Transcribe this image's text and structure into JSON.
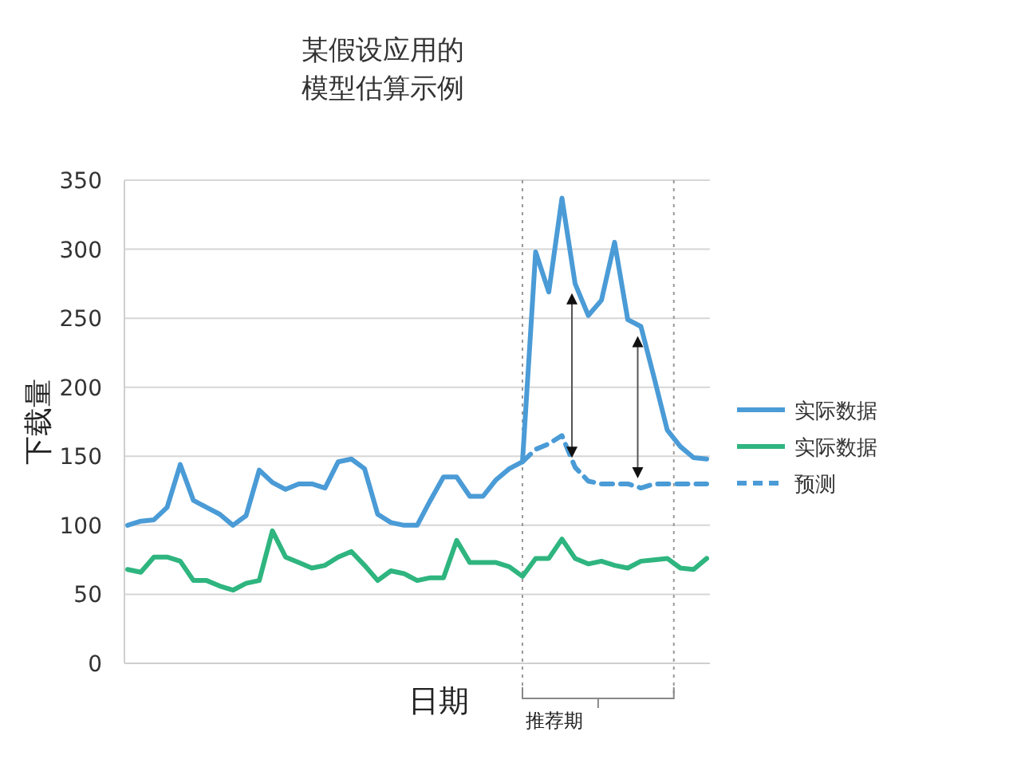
{
  "chart_data": {
    "type": "line",
    "title": "某假设应用的模型估算示例",
    "annotations": [
      "推荐期"
    ],
    "xlabel": "日期",
    "ylabel": "下载量",
    "categories": [
      null,
      null,
      null,
      null,
      null,
      null,
      null,
      null,
      null,
      null,
      null,
      null,
      null,
      null,
      null,
      null,
      null,
      null,
      null,
      null,
      null,
      null,
      null,
      null,
      null,
      null,
      null,
      null,
      null,
      null,
      null,
      null,
      null,
      null,
      null,
      null,
      null,
      null,
      null,
      null,
      null,
      null,
      null,
      null,
      null
    ],
    "series": [
      {
        "name": "实际数据",
        "color": "#4a9bd6",
        "line_style": "solid",
        "values": [
          100,
          103,
          104,
          113,
          144,
          118,
          113,
          108,
          100,
          107,
          140,
          131,
          126,
          130,
          130,
          127,
          146,
          148,
          141,
          108,
          102,
          100,
          100,
          118,
          135,
          135,
          121,
          121,
          133,
          141,
          146,
          298,
          269,
          337,
          275,
          252,
          263,
          305,
          249,
          244,
          207,
          169,
          157,
          149,
          148
        ]
      },
      {
        "name": "实际数据",
        "color": "#2fb57f",
        "line_style": "solid",
        "values": [
          68,
          66,
          77,
          77,
          74,
          60,
          60,
          56,
          53,
          58,
          60,
          96,
          77,
          73,
          69,
          71,
          77,
          81,
          71,
          60,
          67,
          65,
          60,
          62,
          62,
          89,
          73,
          73,
          73,
          70,
          63,
          76,
          76,
          90,
          76,
          72,
          74,
          71,
          69,
          74,
          75,
          76,
          69,
          68,
          76
        ]
      },
      {
        "name": "预测",
        "color": "#4a9bd6",
        "line_style": "dashed",
        "values": [
          null,
          null,
          null,
          null,
          null,
          null,
          null,
          null,
          null,
          null,
          null,
          null,
          null,
          null,
          null,
          null,
          null,
          null,
          null,
          null,
          null,
          null,
          null,
          null,
          null,
          null,
          null,
          null,
          null,
          null,
          146,
          155,
          159,
          165,
          142,
          132,
          130,
          130,
          130,
          127,
          130,
          130,
          130,
          130,
          130
        ]
      }
    ],
    "ylim": [
      0,
      350
    ],
    "yticks": [
      0,
      50,
      100,
      150,
      200,
      250,
      300,
      350
    ],
    "grid": "y",
    "legend": "right"
  }
}
